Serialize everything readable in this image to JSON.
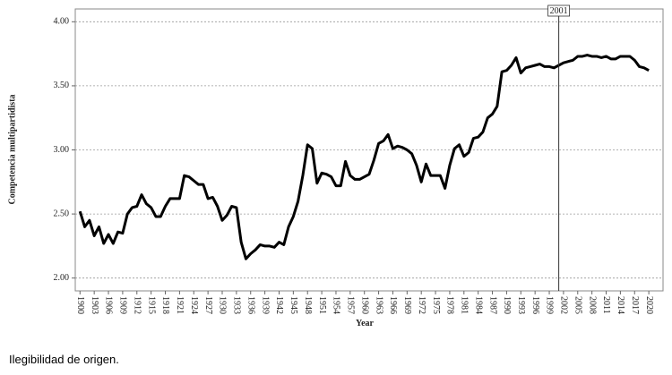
{
  "chart_data": {
    "type": "line",
    "y_label": "Competencia multipartidista",
    "x_label": "Year",
    "x": [
      1900,
      1901,
      1902,
      1903,
      1904,
      1905,
      1906,
      1907,
      1908,
      1909,
      1910,
      1911,
      1912,
      1913,
      1914,
      1915,
      1916,
      1917,
      1918,
      1919,
      1920,
      1921,
      1922,
      1923,
      1924,
      1925,
      1926,
      1927,
      1928,
      1929,
      1930,
      1931,
      1932,
      1933,
      1934,
      1935,
      1936,
      1937,
      1938,
      1939,
      1940,
      1941,
      1942,
      1943,
      1944,
      1945,
      1946,
      1947,
      1948,
      1949,
      1950,
      1951,
      1952,
      1953,
      1954,
      1955,
      1956,
      1957,
      1958,
      1959,
      1960,
      1961,
      1962,
      1963,
      1964,
      1965,
      1966,
      1967,
      1968,
      1969,
      1970,
      1971,
      1972,
      1973,
      1974,
      1975,
      1976,
      1977,
      1978,
      1979,
      1980,
      1981,
      1982,
      1983,
      1984,
      1985,
      1986,
      1987,
      1988,
      1989,
      1990,
      1991,
      1992,
      1993,
      1994,
      1995,
      1996,
      1997,
      1998,
      1999,
      2000,
      2001,
      2002,
      2003,
      2004,
      2005,
      2006,
      2007,
      2008,
      2009,
      2010,
      2011,
      2012,
      2013,
      2014,
      2015,
      2016,
      2017,
      2018,
      2019,
      2020
    ],
    "values": [
      2.52,
      2.4,
      2.45,
      2.33,
      2.4,
      2.27,
      2.34,
      2.27,
      2.36,
      2.35,
      2.5,
      2.55,
      2.56,
      2.65,
      2.58,
      2.55,
      2.48,
      2.48,
      2.56,
      2.62,
      2.62,
      2.62,
      2.8,
      2.79,
      2.76,
      2.73,
      2.73,
      2.62,
      2.63,
      2.56,
      2.45,
      2.49,
      2.56,
      2.55,
      2.28,
      2.15,
      2.19,
      2.22,
      2.26,
      2.25,
      2.25,
      2.24,
      2.28,
      2.26,
      2.4,
      2.48,
      2.6,
      2.8,
      3.04,
      3.01,
      2.74,
      2.82,
      2.81,
      2.79,
      2.72,
      2.72,
      2.91,
      2.8,
      2.77,
      2.77,
      2.79,
      2.81,
      2.92,
      3.05,
      3.07,
      3.12,
      3.01,
      3.03,
      3.02,
      3.0,
      2.97,
      2.88,
      2.75,
      2.89,
      2.8,
      2.8,
      2.8,
      2.7,
      2.88,
      3.01,
      3.04,
      2.95,
      2.98,
      3.09,
      3.1,
      3.14,
      3.25,
      3.28,
      3.34,
      3.61,
      3.62,
      3.66,
      3.72,
      3.6,
      3.64,
      3.65,
      3.66,
      3.67,
      3.65,
      3.65,
      3.64,
      3.66,
      3.68,
      3.69,
      3.7,
      3.73,
      3.73,
      3.74,
      3.73,
      3.73,
      3.72,
      3.73,
      3.71,
      3.71,
      3.73,
      3.73,
      3.73,
      3.7,
      3.65,
      3.64,
      3.62
    ],
    "color": "#000000",
    "xlim": [
      1899,
      2023
    ],
    "xticks": [
      1900,
      1903,
      1906,
      1909,
      1912,
      1915,
      1918,
      1921,
      1924,
      1927,
      1930,
      1933,
      1936,
      1939,
      1942,
      1945,
      1948,
      1951,
      1954,
      1957,
      1960,
      1963,
      1966,
      1969,
      1972,
      1975,
      1978,
      1981,
      1984,
      1987,
      1990,
      1993,
      1996,
      1999,
      2002,
      2005,
      2008,
      2011,
      2014,
      2017,
      2020
    ],
    "ylim": [
      1.9,
      4.1
    ],
    "yticks": [
      {
        "value": 2,
        "label": "2.00"
      },
      {
        "value": 2.5,
        "label": "2.50"
      },
      {
        "value": 3,
        "label": "3.00"
      },
      {
        "value": 3.5,
        "label": "3.50"
      },
      {
        "value": 4,
        "label": "4.00"
      }
    ],
    "grid": true,
    "reference_x": 2001
  },
  "caption": "Ilegibilidad de origen."
}
